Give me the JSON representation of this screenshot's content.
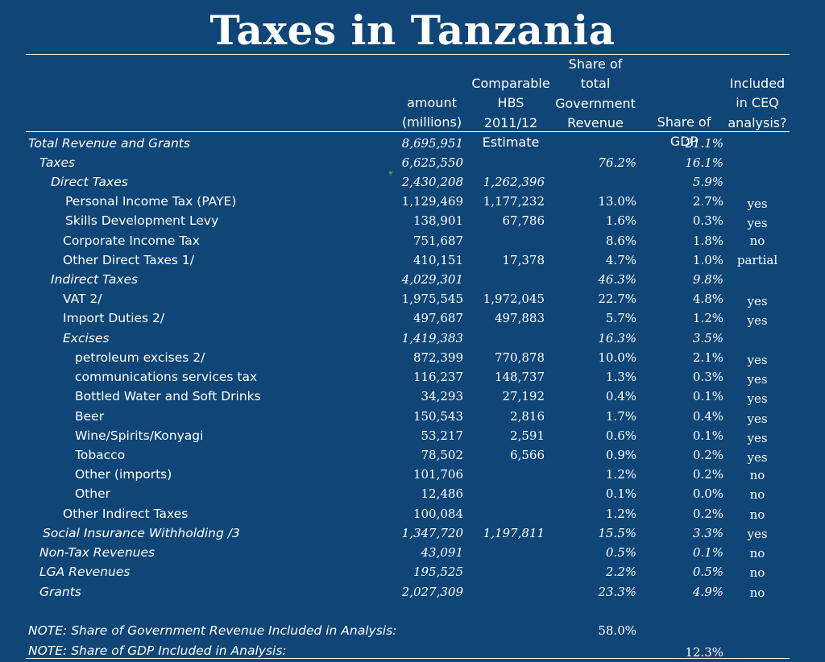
{
  "title": "Taxes in Tanzania",
  "headers": {
    "amount": [
      "amount",
      "(millions)"
    ],
    "hbs": [
      "Comparable",
      "HBS 2011/12",
      "Estimate"
    ],
    "share_gov": [
      "Share of",
      "total",
      "Government",
      "Revenue"
    ],
    "share_gdp": [
      "Share of GDP"
    ],
    "ceq": [
      "Included",
      "in CEQ",
      "analysis?"
    ]
  },
  "rows": [
    {
      "label": "Total Revenue and Grants",
      "amount": "8,695,951",
      "hbs": "",
      "share_gov": "",
      "share_gdp": "21.1%",
      "ceq": "",
      "italic": true
    },
    {
      "label": "Taxes",
      "amount": "6,625,550",
      "hbs": "",
      "share_gov": "76.2%",
      "share_gdp": "16.1%",
      "ceq": "",
      "italic": true
    },
    {
      "label": "Direct Taxes",
      "amount": "2,430,208",
      "hbs": "1,262,396",
      "share_gov": "",
      "share_gdp": "5.9%",
      "ceq": "",
      "italic": true
    },
    {
      "label": "Personal Income Tax (PAYE)",
      "amount": "1,129,469",
      "hbs": "1,177,232",
      "share_gov": "13.0%",
      "share_gdp": "2.7%",
      "ceq": "yes",
      "italic": false
    },
    {
      "label": "Skills Development Levy",
      "amount": "138,901",
      "hbs": "67,786",
      "share_gov": "1.6%",
      "share_gdp": "0.3%",
      "ceq": "yes",
      "italic": false
    },
    {
      "label": "Corporate Income Tax",
      "amount": "751,687",
      "hbs": "",
      "share_gov": "8.6%",
      "share_gdp": "1.8%",
      "ceq": "no",
      "italic": false
    },
    {
      "label": "Other Direct Taxes 1/",
      "amount": "410,151",
      "hbs": "17,378",
      "share_gov": "4.7%",
      "share_gdp": "1.0%",
      "ceq": "partial",
      "italic": false
    },
    {
      "label": "Indirect Taxes",
      "amount": "4,029,301",
      "hbs": "",
      "share_gov": "46.3%",
      "share_gdp": "9.8%",
      "ceq": "",
      "italic": true
    },
    {
      "label": "VAT 2/",
      "amount": "1,975,545",
      "hbs": "1,972,045",
      "share_gov": "22.7%",
      "share_gdp": "4.8%",
      "ceq": "yes",
      "italic": false
    },
    {
      "label": "Import Duties 2/",
      "amount": "497,687",
      "hbs": "497,883",
      "share_gov": "5.7%",
      "share_gdp": "1.2%",
      "ceq": "yes",
      "italic": false
    },
    {
      "label": "Excises",
      "amount": "1,419,383",
      "hbs": "",
      "share_gov": "16.3%",
      "share_gdp": "3.5%",
      "ceq": "",
      "italic": true
    },
    {
      "label": "petroleum excises 2/",
      "amount": "872,399",
      "hbs": "770,878",
      "share_gov": "10.0%",
      "share_gdp": "2.1%",
      "ceq": "yes",
      "italic": false
    },
    {
      "label": "communications services tax",
      "amount": "116,237",
      "hbs": "148,737",
      "share_gov": "1.3%",
      "share_gdp": "0.3%",
      "ceq": "yes",
      "italic": false
    },
    {
      "label": "Bottled Water and Soft Drinks",
      "amount": "34,293",
      "hbs": "27,192",
      "share_gov": "0.4%",
      "share_gdp": "0.1%",
      "ceq": "yes",
      "italic": false
    },
    {
      "label": "Beer",
      "amount": "150,543",
      "hbs": "2,816",
      "share_gov": "1.7%",
      "share_gdp": "0.4%",
      "ceq": "yes",
      "italic": false
    },
    {
      "label": "Wine/Spirits/Konyagi",
      "amount": "53,217",
      "hbs": "2,591",
      "share_gov": "0.6%",
      "share_gdp": "0.1%",
      "ceq": "yes",
      "italic": false
    },
    {
      "label": "Tobacco",
      "amount": "78,502",
      "hbs": "6,566",
      "share_gov": "0.9%",
      "share_gdp": "0.2%",
      "ceq": "yes",
      "italic": false
    },
    {
      "label": "Other (imports)",
      "amount": "101,706",
      "hbs": "",
      "share_gov": "1.2%",
      "share_gdp": "0.2%",
      "ceq": "no",
      "italic": false
    },
    {
      "label": "Other",
      "amount": "12,486",
      "hbs": "",
      "share_gov": "0.1%",
      "share_gdp": "0.0%",
      "ceq": "no",
      "italic": false
    },
    {
      "label": "Other Indirect Taxes",
      "amount": "100,084",
      "hbs": "",
      "share_gov": "1.2%",
      "share_gdp": "0.2%",
      "ceq": "no",
      "italic": false
    },
    {
      "label": "Social Insurance Withholding /3",
      "amount": "1,347,720",
      "hbs": "1,197,811",
      "share_gov": "15.5%",
      "share_gdp": "3.3%",
      "ceq": "yes",
      "italic": true
    },
    {
      "label": "Non-Tax Revenues",
      "amount": "43,091",
      "hbs": "",
      "share_gov": "0.5%",
      "share_gdp": "0.1%",
      "ceq": "no",
      "italic": true
    },
    {
      "label": "LGA Revenues",
      "amount": "195,525",
      "hbs": "",
      "share_gov": "2.2%",
      "share_gdp": "0.5%",
      "ceq": "no",
      "italic": true
    },
    {
      "label": "Grants",
      "amount": "2,027,309",
      "hbs": "",
      "share_gov": "23.3%",
      "share_gdp": "4.9%",
      "ceq": "no",
      "italic": true
    }
  ],
  "notes": [
    {
      "label": "NOTE: Share of Government Revenue Included in Analysis:",
      "value": "58.0%"
    },
    {
      "label": "NOTE: Share of GDP Included in Analysis:",
      "value": "12.3%"
    }
  ],
  "colors": {
    "background": "#0f4577",
    "text": "#ffffff",
    "marker": "#2fa84f"
  }
}
